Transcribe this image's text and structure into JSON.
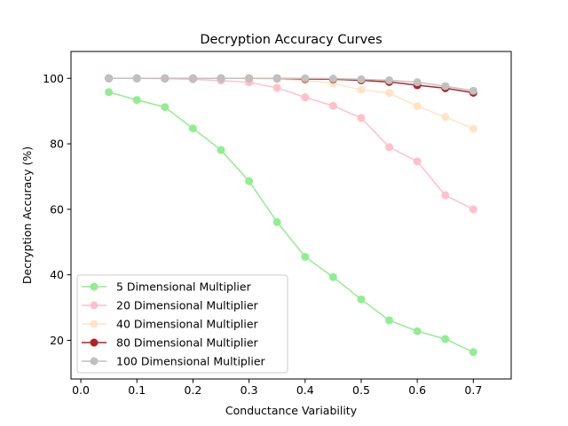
{
  "chart_data": {
    "type": "line",
    "title": "Decryption Accuracy Curves",
    "xlabel": "Conductance Variability",
    "ylabel": "Decryption Accuracy (%)",
    "xlim": [
      -0.0175,
      0.7675
    ],
    "ylim": [
      8.2,
      108.2
    ],
    "xticks": [
      0.0,
      0.1,
      0.2,
      0.3,
      0.4,
      0.5,
      0.6,
      0.7
    ],
    "xtick_labels": [
      "0.0",
      "0.1",
      "0.2",
      "0.3",
      "0.4",
      "0.5",
      "0.6",
      "0.7"
    ],
    "yticks": [
      20,
      40,
      60,
      80,
      100
    ],
    "ytick_labels": [
      "20",
      "40",
      "60",
      "80",
      "100"
    ],
    "grid": false,
    "legend_position": "lower-left",
    "x": [
      0.05,
      0.1,
      0.15,
      0.2,
      0.25,
      0.3,
      0.35,
      0.4,
      0.45,
      0.5,
      0.55,
      0.6,
      0.65,
      0.7
    ],
    "series": [
      {
        "name": "5 Dimensional Multiplier",
        "color": "#90ee90",
        "values": [
          95.8,
          93.4,
          91.2,
          84.7,
          78.1,
          68.6,
          56.1,
          45.5,
          39.3,
          32.5,
          26.1,
          22.8,
          20.4,
          16.4
        ]
      },
      {
        "name": "20 Dimensional Multiplier",
        "color": "#ffc0cb",
        "values": [
          100,
          100,
          99.9,
          99.7,
          99.3,
          98.8,
          97.1,
          94.2,
          91.6,
          87.9,
          79.0,
          74.6,
          64.3,
          60.0
        ]
      },
      {
        "name": "40 Dimensional Multiplier",
        "color": "#ffe4c4",
        "values": [
          100,
          100,
          100,
          100,
          100,
          99.9,
          99.8,
          99.3,
          98.5,
          96.5,
          95.5,
          91.5,
          88.2,
          84.6
        ]
      },
      {
        "name": "80 Dimensional Multiplier",
        "color": "#b22222",
        "values": [
          100,
          100,
          100,
          100,
          100,
          100,
          100,
          99.8,
          99.7,
          99.4,
          98.9,
          97.9,
          97.0,
          95.6
        ]
      },
      {
        "name": "100 Dimensional Multiplier",
        "color": "#c0c0c0",
        "values": [
          100,
          100,
          100,
          100,
          100,
          100,
          100,
          100,
          99.9,
          99.7,
          99.4,
          98.8,
          97.6,
          96.2
        ]
      }
    ]
  }
}
